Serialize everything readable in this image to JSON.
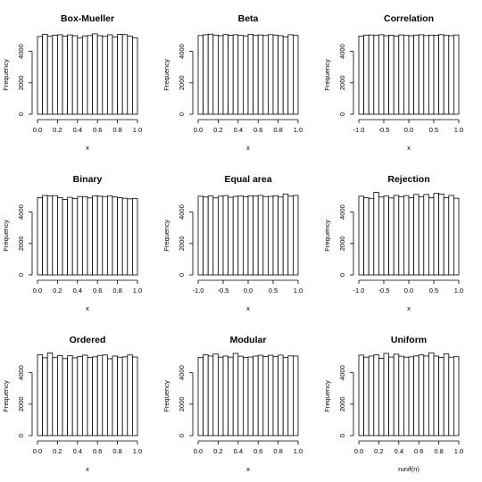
{
  "chart_data": [
    {
      "type": "bar",
      "title": "Box-Mueller",
      "xlabel": "x",
      "ylabel": "Frequency",
      "xlim": [
        0,
        1
      ],
      "ylim": [
        0,
        5000
      ],
      "xticks": [
        "0.0",
        "0.2",
        "0.4",
        "0.6",
        "0.8",
        "1.0"
      ],
      "yticks": [
        "0",
        "2000",
        "4000"
      ],
      "bin_edges": [
        0,
        0.05,
        0.1,
        0.15,
        0.2,
        0.25,
        0.3,
        0.35,
        0.4,
        0.45,
        0.5,
        0.55,
        0.6,
        0.65,
        0.7,
        0.75,
        0.8,
        0.85,
        0.9,
        0.95,
        1.0
      ],
      "values": [
        4950,
        5080,
        4980,
        5030,
        5060,
        4970,
        5050,
        5000,
        4870,
        4990,
        5010,
        5120,
        5000,
        4960,
        5060,
        4930,
        5080,
        5070,
        4980,
        4870
      ]
    },
    {
      "type": "bar",
      "title": "Beta",
      "xlabel": "x",
      "ylabel": "Frequency",
      "xlim": [
        0,
        1
      ],
      "ylim": [
        0,
        5000
      ],
      "xticks": [
        "0.0",
        "0.2",
        "0.4",
        "0.6",
        "0.8",
        "1.0"
      ],
      "yticks": [
        "0",
        "2000",
        "4000"
      ],
      "bin_edges": [
        0,
        0.05,
        0.1,
        0.15,
        0.2,
        0.25,
        0.3,
        0.35,
        0.4,
        0.45,
        0.5,
        0.55,
        0.6,
        0.65,
        0.7,
        0.75,
        0.8,
        0.85,
        0.9,
        0.95,
        1.0
      ],
      "values": [
        5010,
        5060,
        5100,
        5040,
        5000,
        5070,
        5030,
        5060,
        5020,
        4990,
        5080,
        5030,
        5050,
        5010,
        5070,
        5040,
        5000,
        4930,
        5060,
        5020
      ]
    },
    {
      "type": "bar",
      "title": "Correlation",
      "xlabel": "x",
      "ylabel": "Frequency",
      "xlim": [
        -1,
        1
      ],
      "ylim": [
        0,
        5000
      ],
      "xticks": [
        "-1.0",
        "-0.5",
        "0.0",
        "0.5",
        "1.0"
      ],
      "yticks": [
        "0",
        "2000",
        "4000"
      ],
      "bin_edges": [
        -1,
        -0.9,
        -0.8,
        -0.7,
        -0.6,
        -0.5,
        -0.4,
        -0.3,
        -0.2,
        -0.1,
        0,
        0.1,
        0.2,
        0.3,
        0.4,
        0.5,
        0.6,
        0.7,
        0.8,
        0.9,
        1.0
      ],
      "values": [
        4970,
        5040,
        5050,
        5020,
        5060,
        5000,
        5030,
        4980,
        5050,
        5020,
        5000,
        5040,
        5060,
        5010,
        5040,
        5030,
        5070,
        5020,
        5000,
        5050
      ]
    },
    {
      "type": "bar",
      "title": "Binary",
      "xlabel": "x",
      "ylabel": "Frequency",
      "xlim": [
        0,
        1
      ],
      "ylim": [
        0,
        5000
      ],
      "xticks": [
        "0.0",
        "0.2",
        "0.4",
        "0.6",
        "0.8",
        "1.0"
      ],
      "yticks": [
        "0",
        "2000",
        "4000"
      ],
      "bin_edges": [
        0,
        0.05,
        0.1,
        0.15,
        0.2,
        0.25,
        0.3,
        0.35,
        0.4,
        0.45,
        0.5,
        0.55,
        0.6,
        0.65,
        0.7,
        0.75,
        0.8,
        0.85,
        0.9,
        0.95,
        1.0
      ],
      "values": [
        4920,
        5060,
        5030,
        5050,
        4920,
        4800,
        4940,
        4860,
        4990,
        4980,
        4900,
        5040,
        5010,
        4990,
        5030,
        4960,
        4910,
        4880,
        4840,
        4860
      ]
    },
    {
      "type": "bar",
      "title": "Equal area",
      "xlabel": "x",
      "ylabel": "Frequency",
      "xlim": [
        -1,
        1
      ],
      "ylim": [
        0,
        5000
      ],
      "xticks": [
        "-1.0",
        "-0.5",
        "0.0",
        "0.5",
        "1.0"
      ],
      "yticks": [
        "0",
        "2000",
        "4000"
      ],
      "bin_edges": [
        -1,
        -0.9,
        -0.8,
        -0.7,
        -0.6,
        -0.5,
        -0.4,
        -0.3,
        -0.2,
        -0.1,
        0,
        0.1,
        0.2,
        0.3,
        0.4,
        0.5,
        0.6,
        0.7,
        0.8,
        0.9,
        1.0
      ],
      "values": [
        5010,
        4960,
        5020,
        4900,
        5010,
        5050,
        4940,
        5000,
        5030,
        4980,
        5040,
        5020,
        5060,
        4990,
        5000,
        5040,
        4960,
        5150,
        5010,
        5060
      ]
    },
    {
      "type": "bar",
      "title": "Rejection",
      "xlabel": "x",
      "ylabel": "Frequency",
      "xlim": [
        -1,
        1
      ],
      "ylim": [
        0,
        5000
      ],
      "xticks": [
        "-1.0",
        "-0.5",
        "0.0",
        "0.5",
        "1.0"
      ],
      "yticks": [
        "0",
        "2000",
        "4000"
      ],
      "bin_edges": [
        -1,
        -0.9,
        -0.8,
        -0.7,
        -0.6,
        -0.5,
        -0.4,
        -0.3,
        -0.2,
        -0.1,
        0,
        0.1,
        0.2,
        0.3,
        0.4,
        0.5,
        0.6,
        0.7,
        0.8,
        0.9,
        1.0
      ],
      "values": [
        5010,
        4920,
        4870,
        5260,
        4960,
        5020,
        4900,
        5060,
        4980,
        5050,
        4910,
        5120,
        4980,
        5120,
        4920,
        5190,
        5150,
        4920,
        5060,
        4880
      ]
    },
    {
      "type": "bar",
      "title": "Ordered",
      "xlabel": "x",
      "ylabel": "Frequency",
      "xlim": [
        0,
        1
      ],
      "ylim": [
        0,
        5000
      ],
      "xticks": [
        "0.0",
        "0.2",
        "0.4",
        "0.6",
        "0.8",
        "1.0"
      ],
      "yticks": [
        "0",
        "2000",
        "4000"
      ],
      "bin_edges": [
        0,
        0.05,
        0.1,
        0.15,
        0.2,
        0.25,
        0.3,
        0.35,
        0.4,
        0.45,
        0.5,
        0.55,
        0.6,
        0.65,
        0.7,
        0.75,
        0.8,
        0.85,
        0.9,
        0.95,
        1.0
      ],
      "values": [
        5140,
        4950,
        5260,
        4960,
        5090,
        4900,
        5080,
        4950,
        5030,
        5120,
        4970,
        5010,
        5100,
        5130,
        4890,
        5060,
        4990,
        5010,
        5130,
        5000
      ]
    },
    {
      "type": "bar",
      "title": "Modular",
      "xlabel": "x",
      "ylabel": "Frequency",
      "xlim": [
        0,
        1
      ],
      "ylim": [
        0,
        5000
      ],
      "xticks": [
        "0.0",
        "0.2",
        "0.4",
        "0.6",
        "0.8",
        "1.0"
      ],
      "yticks": [
        "0",
        "2000",
        "4000"
      ],
      "bin_edges": [
        0,
        0.05,
        0.1,
        0.15,
        0.2,
        0.25,
        0.3,
        0.35,
        0.4,
        0.45,
        0.5,
        0.55,
        0.6,
        0.65,
        0.7,
        0.75,
        0.8,
        0.85,
        0.9,
        0.95,
        1.0
      ],
      "values": [
        4980,
        5140,
        5060,
        5190,
        4990,
        5060,
        4990,
        5230,
        5050,
        4980,
        5000,
        5060,
        5110,
        5030,
        5110,
        5040,
        5120,
        4980,
        5070,
        5060
      ]
    },
    {
      "type": "bar",
      "title": "Uniform",
      "xlabel": "runif(n)",
      "ylabel": "Frequency",
      "xlim": [
        0,
        1
      ],
      "ylim": [
        0,
        5000
      ],
      "xticks": [
        "0.0",
        "0.2",
        "0.4",
        "0.6",
        "0.8",
        "1.0"
      ],
      "yticks": [
        "0",
        "2000",
        "4000"
      ],
      "bin_edges": [
        0,
        0.05,
        0.1,
        0.15,
        0.2,
        0.25,
        0.3,
        0.35,
        0.4,
        0.45,
        0.5,
        0.55,
        0.6,
        0.65,
        0.7,
        0.75,
        0.8,
        0.85,
        0.9,
        0.95,
        1.0
      ],
      "values": [
        5120,
        4990,
        5060,
        5140,
        4910,
        5230,
        5000,
        5180,
        5050,
        4990,
        5010,
        5070,
        5140,
        5060,
        5270,
        5060,
        4970,
        5200,
        4990,
        5020
      ]
    }
  ]
}
